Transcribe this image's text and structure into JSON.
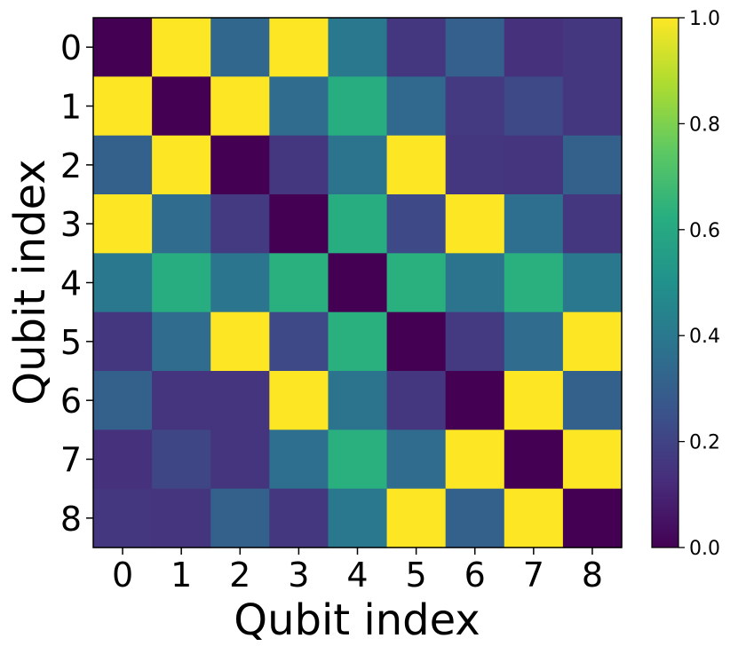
{
  "chart_data": {
    "type": "heatmap",
    "title": "",
    "xlabel": "Qubit index",
    "ylabel": "Qubit index",
    "x_ticks": [
      "0",
      "1",
      "2",
      "3",
      "4",
      "5",
      "6",
      "7",
      "8"
    ],
    "y_ticks": [
      "0",
      "1",
      "2",
      "3",
      "4",
      "5",
      "6",
      "7",
      "8"
    ],
    "colormap": "viridis",
    "vmin": 0.0,
    "vmax": 1.0,
    "colorbar_ticks": [
      "0.0",
      "0.2",
      "0.4",
      "0.6",
      "0.8",
      "1.0"
    ],
    "grid": false,
    "values": [
      [
        0.0,
        1.0,
        0.33,
        1.0,
        0.4,
        0.16,
        0.3,
        0.14,
        0.16
      ],
      [
        1.0,
        0.0,
        1.0,
        0.35,
        0.62,
        0.34,
        0.17,
        0.22,
        0.16
      ],
      [
        0.31,
        1.0,
        0.0,
        0.16,
        0.38,
        1.0,
        0.16,
        0.15,
        0.31
      ],
      [
        1.0,
        0.35,
        0.17,
        0.0,
        0.62,
        0.22,
        1.0,
        0.36,
        0.16
      ],
      [
        0.4,
        0.62,
        0.39,
        0.63,
        0.0,
        0.63,
        0.38,
        0.63,
        0.4
      ],
      [
        0.16,
        0.35,
        1.0,
        0.22,
        0.63,
        0.0,
        0.17,
        0.35,
        1.0
      ],
      [
        0.31,
        0.15,
        0.15,
        1.0,
        0.38,
        0.16,
        0.0,
        1.0,
        0.31
      ],
      [
        0.14,
        0.21,
        0.15,
        0.36,
        0.63,
        0.35,
        1.0,
        0.0,
        1.0
      ],
      [
        0.16,
        0.15,
        0.31,
        0.16,
        0.4,
        1.0,
        0.31,
        1.0,
        0.0
      ]
    ]
  }
}
